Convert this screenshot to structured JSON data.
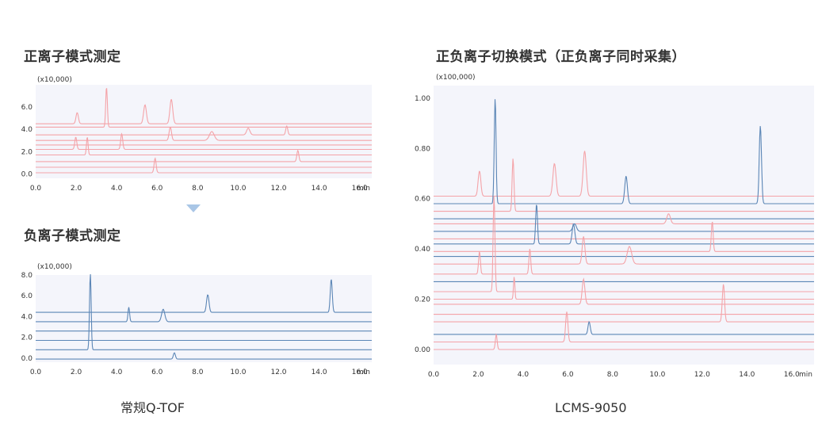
{
  "titles": {
    "pos": "正离子模式测定",
    "neg": "负离子模式测定",
    "switch": "正负离子切换模式（正负离子同时采集）"
  },
  "captions": {
    "left": "常规Q-TOF",
    "right": "LCMS-9050"
  },
  "colors": {
    "pos": "#f4a3a8",
    "neg": "#5b86b6",
    "plot_bg": "#f4f5fb"
  },
  "chart_data": [
    {
      "type": "line",
      "id": "pos",
      "title": "正离子模式测定",
      "yscale_label": "(x10,000)",
      "xlim": [
        0,
        16.6
      ],
      "ylim": [
        -0.4,
        8.0
      ],
      "xticks": [
        0.0,
        2.0,
        4.0,
        6.0,
        8.0,
        10.0,
        12.0,
        14.0,
        16.0
      ],
      "xtick_labels": [
        "0.0",
        "2.0",
        "4.0",
        "6.0",
        "8.0",
        "10.0",
        "12.0",
        "14.0",
        "16.0"
      ],
      "yticks": [
        0.0,
        2.0,
        4.0,
        6.0
      ],
      "ytick_labels": [
        "0.0",
        "2.0",
        "4.0",
        "6.0"
      ],
      "xunit": "min",
      "series": [
        {
          "color": "pos",
          "base": 4.5,
          "peaks": [
            [
              2.05,
              1.0,
              0.06
            ],
            [
              5.4,
              1.7,
              0.07
            ],
            [
              6.7,
              2.2,
              0.07
            ]
          ]
        },
        {
          "color": "pos",
          "base": 4.2,
          "peaks": [
            [
              3.5,
              3.6,
              0.04
            ]
          ]
        },
        {
          "color": "pos",
          "base": 3.5,
          "peaks": [
            [
              10.5,
              0.6,
              0.08
            ],
            [
              12.4,
              0.8,
              0.05
            ]
          ]
        },
        {
          "color": "pos",
          "base": 3.0,
          "peaks": [
            [
              6.65,
              1.2,
              0.06
            ],
            [
              8.7,
              0.8,
              0.12
            ]
          ]
        },
        {
          "color": "pos",
          "base": 2.6,
          "peaks": []
        },
        {
          "color": "pos",
          "base": 2.2,
          "peaks": [
            [
              1.98,
              1.1,
              0.05
            ],
            [
              4.25,
              1.4,
              0.05
            ]
          ]
        },
        {
          "color": "pos",
          "base": 1.7,
          "peaks": [
            [
              2.55,
              1.6,
              0.04
            ]
          ]
        },
        {
          "color": "pos",
          "base": 1.1,
          "peaks": [
            [
              12.95,
              1.0,
              0.05
            ]
          ]
        },
        {
          "color": "pos",
          "base": 0.6,
          "peaks": []
        },
        {
          "color": "pos",
          "base": 0.1,
          "peaks": [
            [
              5.9,
              1.3,
              0.05
            ]
          ]
        }
      ]
    },
    {
      "type": "line",
      "id": "neg",
      "title": "负离子模式测定",
      "yscale_label": "(x10,000)",
      "xlim": [
        0,
        16.6
      ],
      "ylim": [
        -0.4,
        8.0
      ],
      "xticks": [
        0.0,
        2.0,
        4.0,
        6.0,
        8.0,
        10.0,
        12.0,
        14.0,
        16.0
      ],
      "xtick_labels": [
        "0.0",
        "2.0",
        "4.0",
        "6.0",
        "8.0",
        "10.0",
        "12.0",
        "14.0",
        "16.0"
      ],
      "yticks": [
        0.0,
        2.0,
        4.0,
        6.0,
        8.0
      ],
      "ytick_labels": [
        "0.0",
        "2.0",
        "4.0",
        "6.0",
        "8.0"
      ],
      "xunit": "min",
      "series": [
        {
          "color": "neg",
          "base": 4.4,
          "peaks": [
            [
              8.5,
              1.7,
              0.06
            ],
            [
              14.6,
              3.2,
              0.05
            ]
          ]
        },
        {
          "color": "neg",
          "base": 3.5,
          "peaks": [
            [
              4.6,
              1.4,
              0.04
            ],
            [
              6.3,
              1.2,
              0.08
            ]
          ]
        },
        {
          "color": "neg",
          "base": 2.6,
          "peaks": []
        },
        {
          "color": "neg",
          "base": 1.7,
          "peaks": []
        },
        {
          "color": "neg",
          "base": 0.8,
          "peaks": [
            [
              2.7,
              7.3,
              0.04
            ]
          ]
        },
        {
          "color": "neg",
          "base": -0.1,
          "peaks": [
            [
              6.85,
              0.6,
              0.05
            ]
          ]
        }
      ]
    },
    {
      "type": "line",
      "id": "switch",
      "title": "正负离子切换模式（正负离子同时采集）",
      "yscale_label": "(x100,000)",
      "xlim": [
        0,
        17.0
      ],
      "ylim": [
        -0.06,
        1.05
      ],
      "xticks": [
        0.0,
        2.0,
        4.0,
        6.0,
        8.0,
        10.0,
        12.0,
        14.0,
        16.0
      ],
      "xtick_labels": [
        "0.0",
        "2.0",
        "4.0",
        "6.0",
        "8.0",
        "10.0",
        "12.0",
        "14.0",
        "16.0"
      ],
      "yticks": [
        0.0,
        0.2,
        0.4,
        0.6,
        0.8,
        1.0
      ],
      "ytick_labels": [
        "0.00",
        "0.20",
        "0.40",
        "0.60",
        "0.80",
        "1.00"
      ],
      "xunit": "min",
      "series": [
        {
          "color": "pos",
          "base": 0.61,
          "peaks": [
            [
              2.05,
              0.1,
              0.06
            ],
            [
              5.4,
              0.13,
              0.07
            ],
            [
              6.75,
              0.18,
              0.07
            ]
          ]
        },
        {
          "color": "neg",
          "base": 0.58,
          "peaks": [
            [
              2.75,
              0.42,
              0.04
            ],
            [
              8.6,
              0.11,
              0.06
            ],
            [
              14.6,
              0.31,
              0.05
            ]
          ]
        },
        {
          "color": "pos",
          "base": 0.55,
          "peaks": [
            [
              3.55,
              0.21,
              0.04
            ]
          ]
        },
        {
          "color": "neg",
          "base": 0.52,
          "peaks": []
        },
        {
          "color": "pos",
          "base": 0.5,
          "peaks": [
            [
              10.5,
              0.04,
              0.08
            ]
          ]
        },
        {
          "color": "neg",
          "base": 0.47,
          "peaks": [
            [
              6.3,
              0.03,
              0.08
            ]
          ]
        },
        {
          "color": "pos",
          "base": 0.44,
          "peaks": []
        },
        {
          "color": "neg",
          "base": 0.42,
          "peaks": [
            [
              4.6,
              0.16,
              0.04
            ],
            [
              6.25,
              0.08,
              0.06
            ]
          ]
        },
        {
          "color": "pos",
          "base": 0.39,
          "peaks": [
            [
              12.45,
              0.12,
              0.04
            ]
          ]
        },
        {
          "color": "neg",
          "base": 0.37,
          "peaks": []
        },
        {
          "color": "pos",
          "base": 0.34,
          "peaks": [
            [
              6.7,
              0.11,
              0.06
            ],
            [
              8.75,
              0.07,
              0.1
            ]
          ]
        },
        {
          "color": "pos",
          "base": 0.3,
          "peaks": [
            [
              2.05,
              0.09,
              0.04
            ],
            [
              4.3,
              0.1,
              0.04
            ]
          ]
        },
        {
          "color": "neg",
          "base": 0.27,
          "peaks": []
        },
        {
          "color": "pos",
          "base": 0.23,
          "peaks": [
            [
              2.7,
              0.38,
              0.04
            ]
          ]
        },
        {
          "color": "pos",
          "base": 0.2,
          "peaks": [
            [
              3.6,
              0.09,
              0.03
            ]
          ]
        },
        {
          "color": "pos",
          "base": 0.18,
          "peaks": [
            [
              6.7,
              0.1,
              0.06
            ]
          ]
        },
        {
          "color": "pos",
          "base": 0.14,
          "peaks": []
        },
        {
          "color": "pos",
          "base": 0.11,
          "peaks": [
            [
              12.95,
              0.15,
              0.05
            ]
          ]
        },
        {
          "color": "neg",
          "base": 0.06,
          "peaks": [
            [
              6.95,
              0.05,
              0.05
            ]
          ]
        },
        {
          "color": "pos",
          "base": 0.03,
          "peaks": [
            [
              5.95,
              0.12,
              0.05
            ]
          ]
        },
        {
          "color": "pos",
          "base": 0.0,
          "peaks": [
            [
              2.8,
              0.06,
              0.04
            ]
          ]
        }
      ]
    }
  ]
}
